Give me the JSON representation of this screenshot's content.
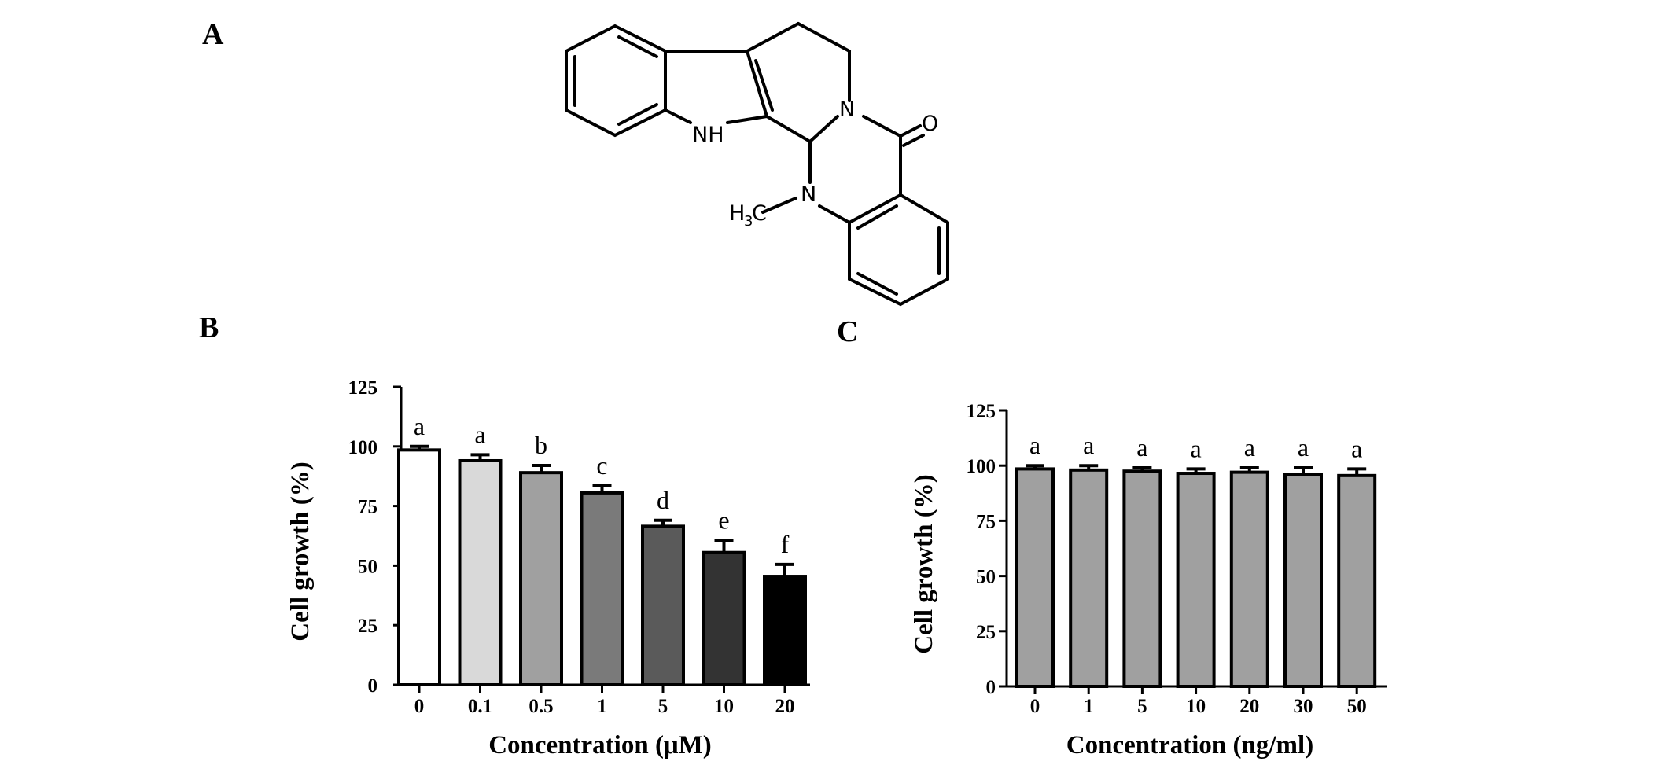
{
  "panels": {
    "a_label": "A",
    "b_label": "B",
    "c_label": "C"
  },
  "structure": {
    "atoms": {
      "nh": "NH",
      "n_amide": "N",
      "n_methyl": "N",
      "oxygen": "O",
      "methyl_h": "H",
      "methyl_sub": "3",
      "methyl_c": "C"
    }
  },
  "chart_data": [
    {
      "type": "bar",
      "panel": "B",
      "categories": [
        "0",
        "0.1",
        "0.5",
        "1",
        "5",
        "10",
        "20"
      ],
      "values": [
        98.5,
        94,
        89,
        80.5,
        66.5,
        55.5,
        45.5
      ],
      "errors": [
        1.5,
        2.5,
        3,
        3,
        2.5,
        5,
        5
      ],
      "significance": [
        "a",
        "a",
        "b",
        "c",
        "d",
        "e",
        "f"
      ],
      "bar_colors": [
        "#ffffff",
        "#d9d9d9",
        "#a0a0a0",
        "#7a7a7a",
        "#5a5a5a",
        "#333333",
        "#000000"
      ],
      "xlabel": "Concentration (μM)",
      "ylabel": "Cell growth (%)",
      "ylim": [
        0,
        125
      ],
      "yticks": [
        "0",
        "25",
        "50",
        "75",
        "100",
        "125"
      ]
    },
    {
      "type": "bar",
      "panel": "C",
      "categories": [
        "0",
        "1",
        "5",
        "10",
        "20",
        "30",
        "50"
      ],
      "values": [
        98.5,
        98,
        97.5,
        96.5,
        97,
        96,
        95.5
      ],
      "errors": [
        1.5,
        2,
        1.5,
        2,
        2,
        3,
        3
      ],
      "significance": [
        "a",
        "a",
        "a",
        "a",
        "a",
        "a",
        "a"
      ],
      "bar_colors": [
        "#a0a0a0",
        "#a0a0a0",
        "#a0a0a0",
        "#a0a0a0",
        "#a0a0a0",
        "#a0a0a0",
        "#a0a0a0"
      ],
      "xlabel": "Concentration (ng/ml)",
      "ylabel": "Cell growth (%)",
      "ylim": [
        0,
        125
      ],
      "yticks": [
        "0",
        "25",
        "50",
        "75",
        "100",
        "125"
      ]
    }
  ]
}
